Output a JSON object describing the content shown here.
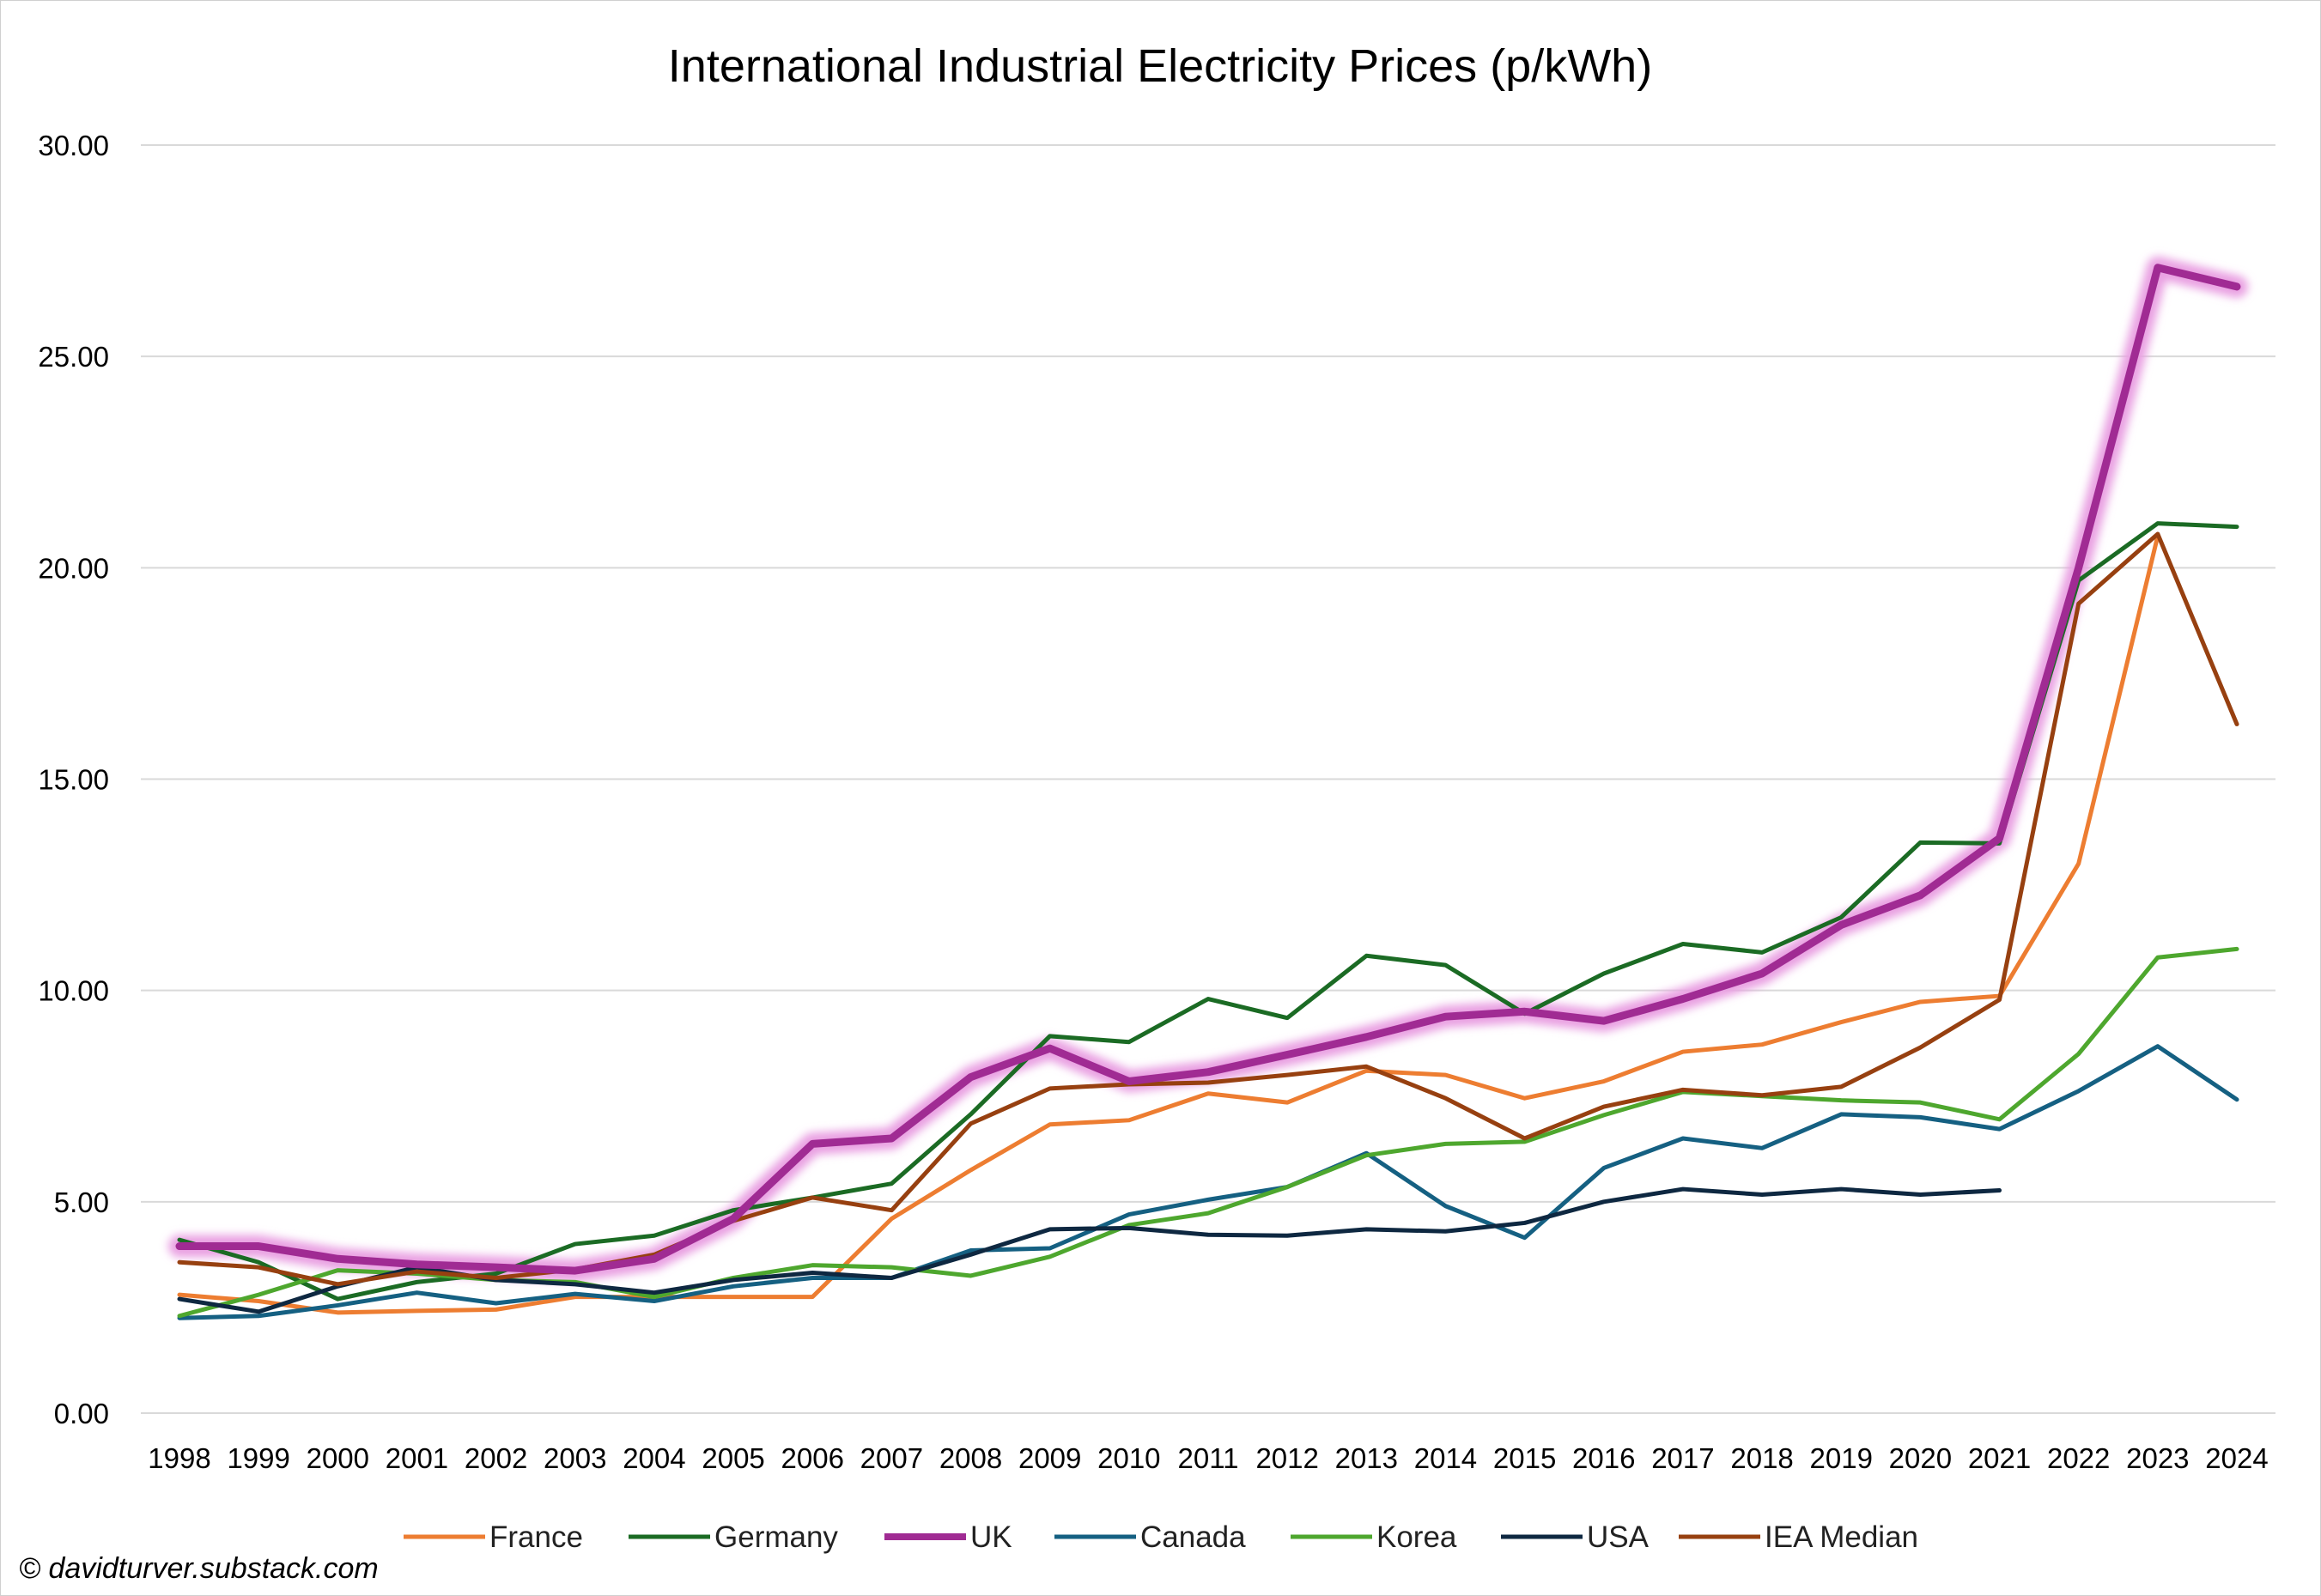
{
  "chart_data": {
    "type": "line",
    "title": "International Industrial Electricity Prices (p/kWh)",
    "xlabel": "",
    "ylabel": "",
    "ylim": [
      0,
      30
    ],
    "yticks": [
      "0.00",
      "5.00",
      "10.00",
      "15.00",
      "20.00",
      "25.00",
      "30.00"
    ],
    "grid": true,
    "legend_position": "bottom",
    "x": [
      "1998",
      "1999",
      "2000",
      "2001",
      "2002",
      "2003",
      "2004",
      "2005",
      "2006",
      "2007",
      "2008",
      "2009",
      "2010",
      "2011",
      "2012",
      "2013",
      "2014",
      "2015",
      "2016",
      "2017",
      "2018",
      "2019",
      "2020",
      "2021",
      "2022",
      "2023",
      "2024"
    ],
    "series": [
      {
        "name": "France",
        "color": "#ED7D31",
        "values": [
          2.8,
          2.65,
          2.38,
          2.42,
          2.45,
          2.75,
          2.75,
          2.75,
          2.75,
          4.6,
          5.75,
          6.83,
          6.93,
          7.56,
          7.35,
          8.1,
          8.0,
          7.45,
          7.85,
          8.55,
          8.72,
          9.25,
          9.73,
          9.87,
          13.0,
          20.75,
          null
        ]
      },
      {
        "name": "Germany",
        "color": "#1B6B24",
        "values": [
          4.1,
          3.57,
          2.7,
          3.1,
          3.3,
          4.0,
          4.2,
          4.8,
          5.1,
          5.43,
          7.07,
          8.92,
          8.78,
          9.8,
          9.35,
          10.82,
          10.6,
          9.45,
          10.4,
          11.1,
          10.9,
          11.73,
          13.5,
          13.48,
          19.7,
          21.05,
          20.97
        ]
      },
      {
        "name": "UK",
        "color": "#A02B93",
        "values": [
          3.95,
          3.95,
          3.65,
          3.52,
          3.45,
          3.37,
          3.65,
          4.6,
          6.37,
          6.5,
          7.95,
          8.63,
          7.85,
          8.07,
          8.48,
          8.9,
          9.38,
          9.5,
          9.28,
          9.8,
          10.4,
          11.55,
          12.25,
          13.6,
          20.0,
          27.1,
          26.65
        ]
      },
      {
        "name": "Canada",
        "color": "#156082",
        "values": [
          2.25,
          2.3,
          2.55,
          2.85,
          2.6,
          2.82,
          2.65,
          3.0,
          3.2,
          3.2,
          3.85,
          3.9,
          4.7,
          5.05,
          5.35,
          6.15,
          4.9,
          4.15,
          5.8,
          6.5,
          6.27,
          7.07,
          7.0,
          6.72,
          7.62,
          8.68,
          7.42
        ]
      },
      {
        "name": "Korea",
        "color": "#4EA72E",
        "values": [
          2.3,
          2.8,
          3.38,
          3.3,
          3.15,
          3.1,
          2.75,
          3.2,
          3.5,
          3.45,
          3.25,
          3.7,
          4.45,
          4.73,
          5.35,
          6.1,
          6.37,
          6.42,
          7.05,
          7.6,
          7.5,
          7.4,
          7.35,
          6.95,
          8.5,
          10.78,
          10.98
        ]
      },
      {
        "name": "USA",
        "color": "#0E2841",
        "values": [
          2.7,
          2.4,
          3.0,
          3.45,
          3.15,
          3.05,
          2.85,
          3.15,
          3.32,
          3.2,
          3.75,
          4.35,
          4.38,
          4.22,
          4.2,
          4.35,
          4.3,
          4.5,
          5.0,
          5.3,
          5.17,
          5.3,
          5.17,
          5.27,
          null,
          null,
          null
        ]
      },
      {
        "name": "IEA Median",
        "color": "#974010",
        "values": [
          3.57,
          3.45,
          3.05,
          3.35,
          3.2,
          3.4,
          3.75,
          4.55,
          5.1,
          4.8,
          6.85,
          7.68,
          7.78,
          7.82,
          8.0,
          8.2,
          7.45,
          6.5,
          7.25,
          7.65,
          7.52,
          7.72,
          8.65,
          9.78,
          19.15,
          20.8,
          16.3
        ]
      }
    ],
    "highlight_series": "UK",
    "highlight_glow_color": "#E9A0E2"
  },
  "footer": {
    "copyright": "© davidturver.substack.com"
  }
}
